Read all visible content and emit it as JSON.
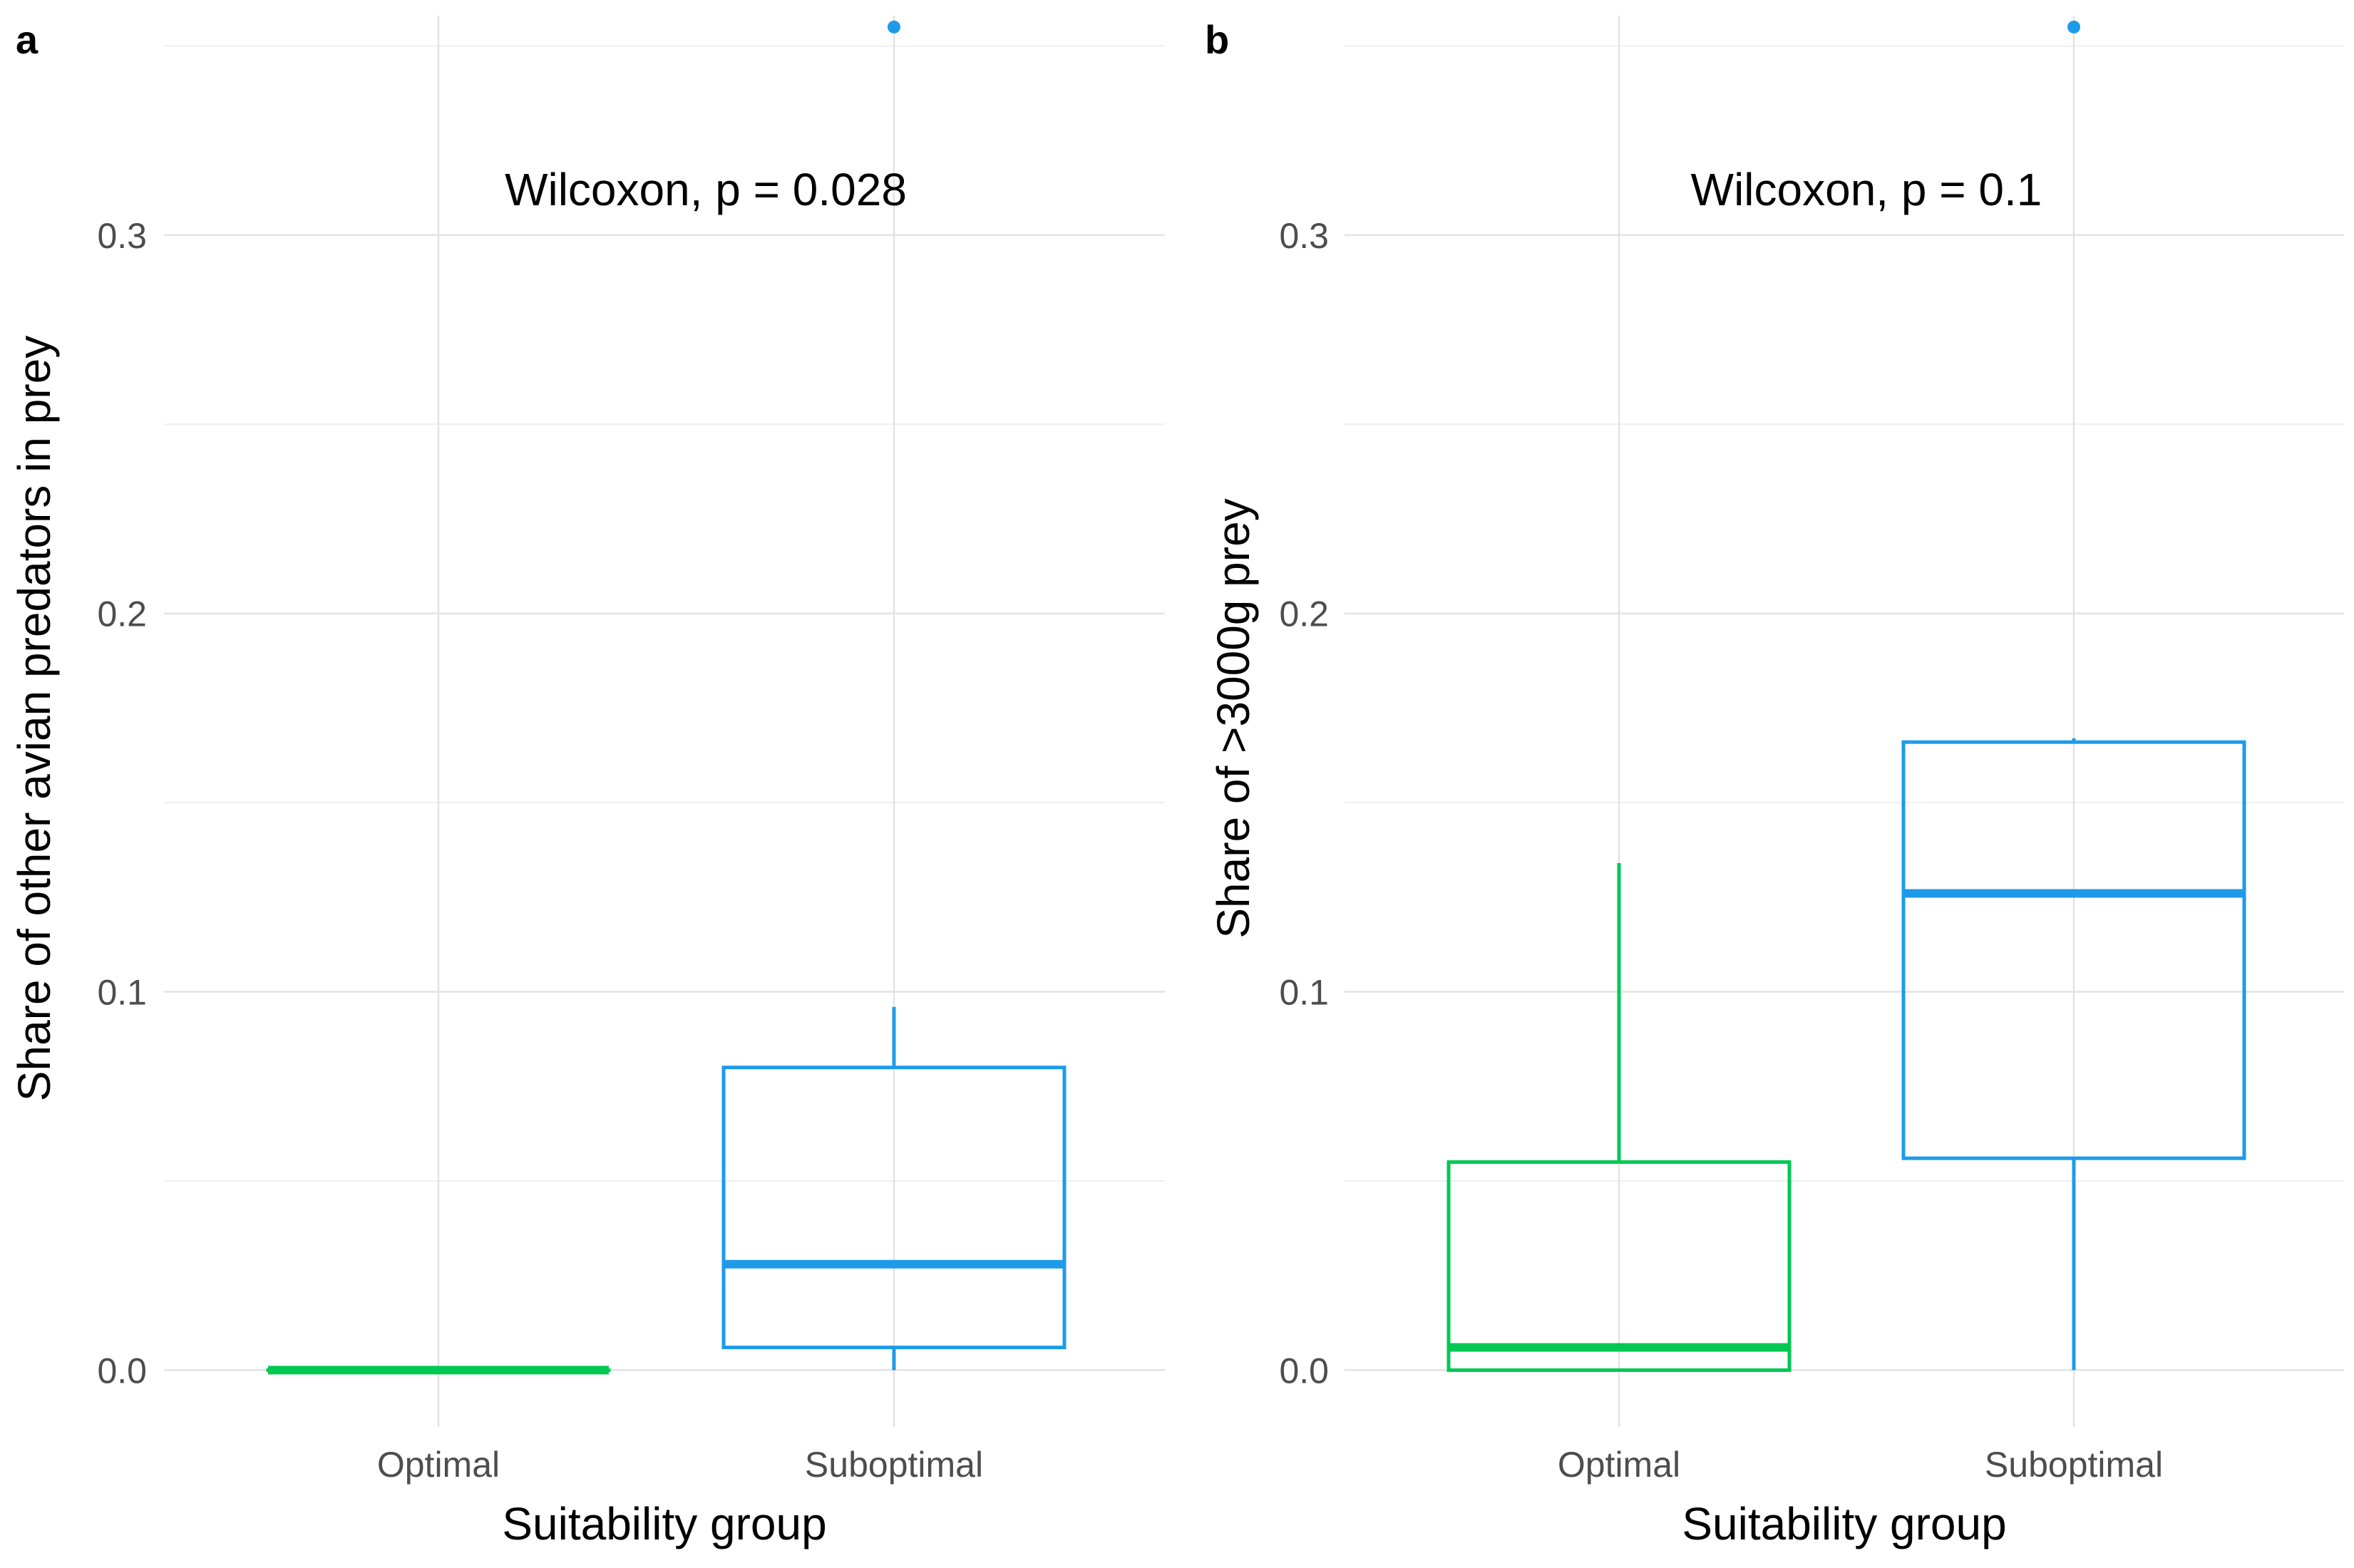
{
  "chart_data": [
    {
      "panel": "a",
      "type": "boxplot",
      "xlabel": "Suitability group",
      "ylabel": "Share of other avian predators in prey",
      "categories": [
        "Optimal",
        "Suboptimal"
      ],
      "ylim": [
        -0.015,
        0.358
      ],
      "yticks": [
        0.0,
        0.1,
        0.2,
        0.3
      ],
      "ytick_labels": [
        "0.0",
        "0.1",
        "0.2",
        "0.3"
      ],
      "annotation": "Wilcoxon, p = 0.028",
      "boxes": [
        {
          "category": "Optimal",
          "min": 0.0,
          "q1": 0.0,
          "median": 0.0,
          "q3": 0.0,
          "max": 0.0,
          "outliers": [],
          "color": "#00c853"
        },
        {
          "category": "Suboptimal",
          "min": 0.0,
          "q1": 0.006,
          "median": 0.028,
          "q3": 0.08,
          "max": 0.096,
          "outliers": [
            0.355
          ],
          "color": "#1e9be8"
        }
      ]
    },
    {
      "panel": "b",
      "type": "boxplot",
      "xlabel": "Suitability group",
      "ylabel": "Share of >3000g prey",
      "categories": [
        "Optimal",
        "Suboptimal"
      ],
      "ylim": [
        -0.015,
        0.358
      ],
      "yticks": [
        0.0,
        0.1,
        0.2,
        0.3
      ],
      "ytick_labels": [
        "0.0",
        "0.1",
        "0.2",
        "0.3"
      ],
      "annotation": "Wilcoxon, p = 0.1",
      "boxes": [
        {
          "category": "Optimal",
          "min": 0.0,
          "q1": 0.0,
          "median": 0.006,
          "q3": 0.055,
          "max": 0.134,
          "outliers": [],
          "color": "#00c853"
        },
        {
          "category": "Suboptimal",
          "min": 0.0,
          "q1": 0.056,
          "median": 0.126,
          "q3": 0.166,
          "max": 0.167,
          "outliers": [
            0.355
          ],
          "color": "#1e9be8"
        }
      ]
    }
  ]
}
